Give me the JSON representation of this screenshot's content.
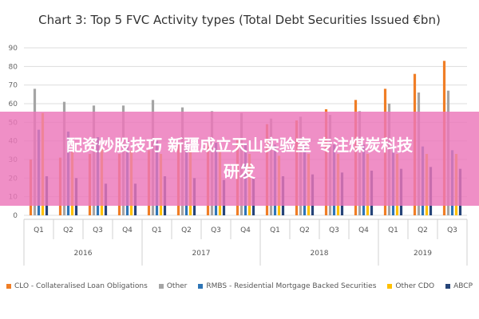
{
  "chart_data": {
    "type": "bar",
    "title": "Chart 3: Top 5 FVC Activity types (Total Debt Securities Issued €bn)",
    "xlabel": "",
    "ylabel": "",
    "ylim": [
      0,
      90
    ],
    "yticks": [
      0,
      10,
      20,
      30,
      40,
      50,
      60,
      70,
      80,
      90
    ],
    "grid": true,
    "legend_position": "bottom",
    "categories": [
      "Q1",
      "Q2",
      "Q3",
      "Q4",
      "Q1",
      "Q2",
      "Q3",
      "Q4",
      "Q1",
      "Q2",
      "Q3",
      "Q4",
      "Q1",
      "Q2",
      "Q3"
    ],
    "year_groups": [
      {
        "label": "2016",
        "quarters": 4
      },
      {
        "label": "2017",
        "quarters": 4
      },
      {
        "label": "2018",
        "quarters": 4
      },
      {
        "label": "2019",
        "quarters": 3
      }
    ],
    "series": [
      {
        "name": "CLO - Collateralised Loan Obligations",
        "color": "#f07e26",
        "values": [
          30,
          31,
          33,
          33,
          35,
          38,
          39,
          41,
          49,
          51,
          57,
          62,
          68,
          76,
          83
        ]
      },
      {
        "name": "Other",
        "color": "#a5a5a5",
        "values": [
          68,
          61,
          59,
          59,
          62,
          58,
          56,
          55,
          52,
          53,
          54,
          56,
          60,
          66,
          67
        ]
      },
      {
        "name": "RMBS - Residential Mortgage Backed Securities",
        "color": "#2e75b6",
        "values": [
          46,
          45,
          42,
          40,
          40,
          39,
          39,
          39,
          38,
          38,
          38,
          38,
          37,
          37,
          35
        ]
      },
      {
        "name": "Other CDO",
        "color": "#ffc000",
        "values": [
          55,
          34,
          36,
          35,
          33,
          35,
          34,
          33,
          32,
          33,
          33,
          33,
          33,
          33,
          33
        ]
      },
      {
        "name": "ABCP",
        "color": "#264478",
        "values": [
          21,
          20,
          17,
          17,
          21,
          20,
          19,
          20,
          21,
          22,
          23,
          24,
          25,
          26,
          25
        ]
      }
    ]
  },
  "overlay": {
    "line1": "配资炒股技巧 新疆成立天山实验室 专注煤炭科技",
    "line2": "研发"
  }
}
